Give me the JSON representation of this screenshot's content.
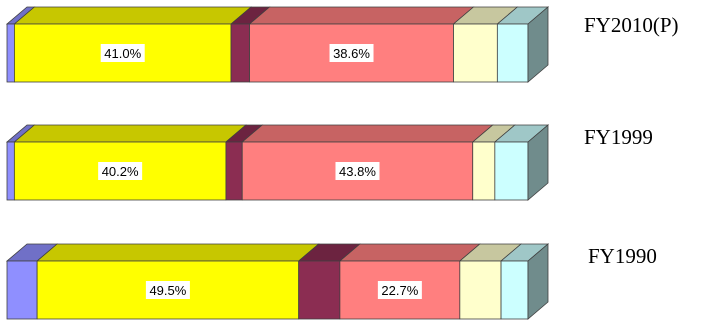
{
  "chart_data": {
    "type": "bar",
    "orientation": "horizontal",
    "stacked": "percent",
    "style": "3d",
    "categories": [
      "FY2010(P)",
      "FY1999",
      "FY1990"
    ],
    "series": [
      {
        "color": "#8f8fff",
        "values": [
          1.4,
          1.4,
          5.7
        ]
      },
      {
        "color": "#ffff00",
        "values": [
          41.0,
          40.2,
          49.5
        ]
      },
      {
        "color": "#8b2d52",
        "values": [
          3.5,
          3.1,
          7.8
        ]
      },
      {
        "color": "#ff7f7f",
        "values": [
          38.6,
          43.8,
          22.7
        ]
      },
      {
        "color": "#ffffcc",
        "values": [
          8.3,
          4.2,
          7.8
        ]
      },
      {
        "color": "#ccffff",
        "values": [
          5.8,
          6.3,
          5.1
        ]
      }
    ],
    "data_labels": [
      [
        "",
        "41.0%",
        "",
        "38.6%",
        "",
        ""
      ],
      [
        "",
        "40.2%",
        "",
        "43.8%",
        "",
        ""
      ],
      [
        "",
        "49.5%",
        "",
        "22.7%",
        "",
        ""
      ]
    ],
    "legend": "none",
    "grid": false
  }
}
